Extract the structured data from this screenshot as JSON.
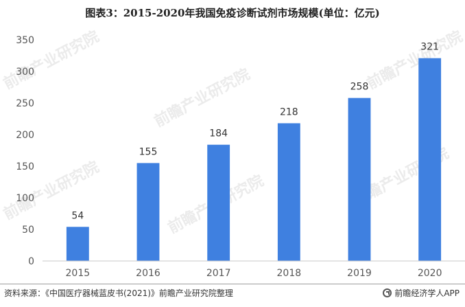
{
  "title": "图表3：2015-2020年我国免疫诊断试剂市场规模(单位：亿元)",
  "source": "资料来源：《中国医疗器械蓝皮书(2021)》前瞻产业研究院整理",
  "brand": "前瞻经济学人APP",
  "watermark": "前瞻产业研究院",
  "colors": {
    "bar": "#3f80e0",
    "axis": "#c8c8c8",
    "tick_text": "#555555",
    "label_text": "#333333"
  },
  "chart_data": {
    "type": "bar",
    "title": "图表3：2015-2020年我国免疫诊断试剂市场规模(单位：亿元)",
    "categories": [
      "2015",
      "2016",
      "2017",
      "2018",
      "2019",
      "2020"
    ],
    "values": [
      54,
      155,
      184,
      218,
      258,
      321
    ],
    "data_labels": [
      "54",
      "155",
      "184",
      "218",
      "258",
      "321"
    ],
    "yticks": [
      0,
      50,
      100,
      150,
      200,
      250,
      300,
      350
    ],
    "ylim": [
      0,
      350
    ],
    "grid": false,
    "legend": "none"
  }
}
